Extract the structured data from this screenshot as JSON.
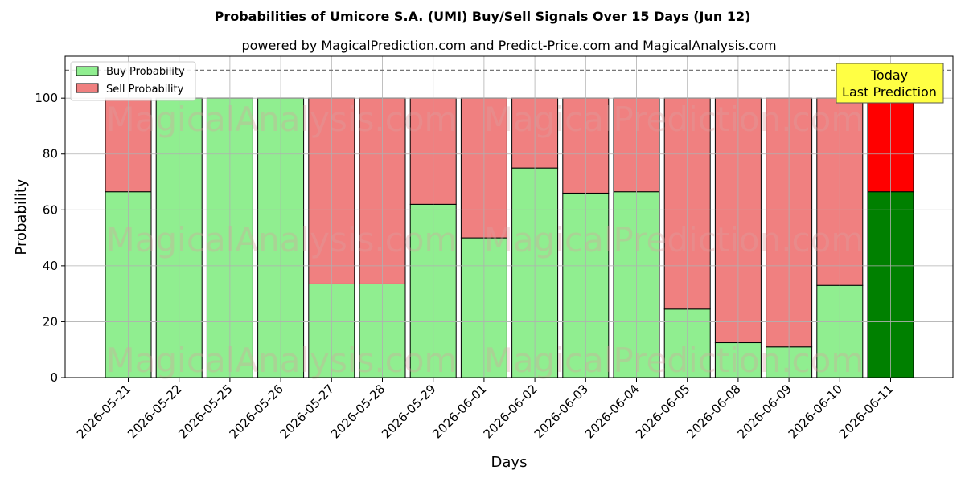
{
  "chart_data": {
    "type": "bar",
    "stacked": true,
    "title": "Probabilities of Umicore S.A. (UMI) Buy/Sell Signals Over 15 Days (Jun 12)",
    "subtitle": "powered by MagicalPrediction.com and Predict-Price.com and MagicalAnalysis.com",
    "xlabel": "Days",
    "ylabel": "Probability",
    "ylim": [
      0,
      115
    ],
    "yticks": [
      0,
      20,
      40,
      60,
      80,
      100
    ],
    "reference_line": 110,
    "grid": true,
    "legend_position": "top-left",
    "categories": [
      "2026-05-21",
      "2026-05-22",
      "2026-05-25",
      "2026-05-26",
      "2026-05-27",
      "2026-05-28",
      "2026-05-29",
      "2026-06-01",
      "2026-06-02",
      "2026-06-03",
      "2026-06-04",
      "2026-06-05",
      "2026-06-08",
      "2026-06-09",
      "2026-06-10",
      "2026-06-11"
    ],
    "series": [
      {
        "name": "Buy Probability",
        "color": "#90ee90",
        "highlight_color": "#008000",
        "values": [
          66.5,
          100,
          100,
          100,
          33.5,
          33.5,
          62,
          50,
          75,
          66,
          66.5,
          24.5,
          12.5,
          11,
          33,
          66.5
        ]
      },
      {
        "name": "Sell Probability",
        "color": "#f08080",
        "highlight_color": "#ff0000",
        "values": [
          33.5,
          0,
          0,
          0,
          66.5,
          66.5,
          38,
          50,
          25,
          34,
          33.5,
          75.5,
          87.5,
          89,
          67,
          33.5
        ]
      }
    ],
    "annotation": {
      "line1": "Today",
      "line2": "Last Prediction",
      "background": "#ffff44"
    },
    "watermarks": [
      "MagicalAnalysis.com",
      "MagicalPrediction.com"
    ]
  }
}
